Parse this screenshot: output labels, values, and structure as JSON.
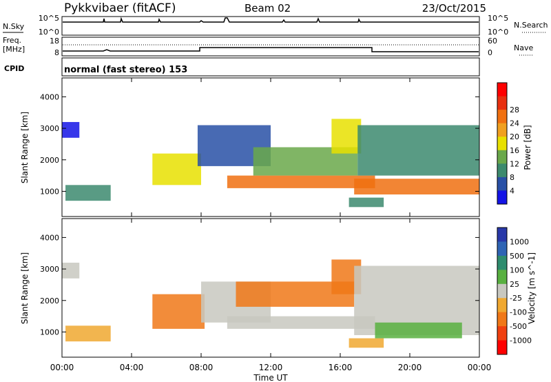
{
  "header": {
    "station": "Pykkvibaer (fitACF)",
    "beam": "Beam 02",
    "date": "23/Oct/2015"
  },
  "strip_panels": {
    "nsky_label": "N.Sky",
    "nsearch_label": "N.Search",
    "nsky_tick_top": "10^5",
    "nsky_tick_bottom": "10^0",
    "nsearch_tick_top": "10^5",
    "nsearch_tick_bottom": "10^0",
    "freq_label_1": "Freq.",
    "freq_label_2": "[MHz]",
    "freq_tick_top": "18",
    "freq_tick_bottom": "8",
    "nave_label": "Nave",
    "nave_tick_top": "60",
    "nave_tick_bottom": "0",
    "cpid_label": "CPID",
    "cpid_text": "normal (fast stereo) 153"
  },
  "colors": {
    "power_scale": [
      "#1414e6",
      "#2850a6",
      "#3c8a6e",
      "#6aa84a",
      "#e8e000",
      "#f0a020",
      "#f07010",
      "#e83010",
      "#ff0000"
    ],
    "velocity_scale": [
      "#2838a8",
      "#2e64b4",
      "#2e8c6e",
      "#58b040",
      "#c8c8c0",
      "#f0a830",
      "#f07818",
      "#f04010",
      "#ff0000"
    ]
  },
  "chart_data": [
    {
      "type": "heatmap",
      "name": "power",
      "xlabel": "",
      "ylabel": "Slant Range [km]",
      "xlim": [
        0,
        24
      ],
      "ylim": [
        200,
        4600
      ],
      "yticks": [
        "1000",
        "2000",
        "3000",
        "4000"
      ],
      "colorbar_label": "Power [dB]",
      "colorbar_ticks": [
        "4",
        "8",
        "12",
        "16",
        "20",
        "24",
        "28"
      ],
      "bands": [
        {
          "x": [
            0.2,
            2.8
          ],
          "y0": 700,
          "y1": 1200,
          "level": 12
        },
        {
          "x": [
            0.0,
            1.0
          ],
          "y0": 2700,
          "y1": 3200,
          "level": 4
        },
        {
          "x": [
            5.2,
            8.0
          ],
          "y0": 1200,
          "y1": 2200,
          "level": 20
        },
        {
          "x": [
            7.8,
            12.0
          ],
          "y0": 1800,
          "y1": 3100,
          "level": 6
        },
        {
          "x": [
            9.5,
            18.0
          ],
          "y0": 1100,
          "y1": 1500,
          "level": 28
        },
        {
          "x": [
            11.0,
            17.0
          ],
          "y0": 1500,
          "y1": 2400,
          "level": 14
        },
        {
          "x": [
            15.5,
            17.2
          ],
          "y0": 2200,
          "y1": 3300,
          "level": 20
        },
        {
          "x": [
            16.8,
            24.0
          ],
          "y0": 900,
          "y1": 1400,
          "level": 28
        },
        {
          "x": [
            17.0,
            24.0
          ],
          "y0": 1500,
          "y1": 3100,
          "level": 12
        },
        {
          "x": [
            16.5,
            18.5
          ],
          "y0": 500,
          "y1": 800,
          "level": 10
        }
      ]
    },
    {
      "type": "heatmap",
      "name": "velocity",
      "xlabel": "Time UT",
      "ylabel": "Slant Range [km]",
      "xlim": [
        0,
        24
      ],
      "ylim": [
        200,
        4600
      ],
      "yticks": [
        "1000",
        "2000",
        "3000",
        "4000"
      ],
      "xticks": [
        "00:00",
        "04:00",
        "08:00",
        "12:00",
        "16:00",
        "20:00",
        "00:00"
      ],
      "colorbar_label": "Velocity [m s^-1]",
      "colorbar_ticks": [
        "1000",
        "500",
        "100",
        "25",
        "-25",
        "-100",
        "-500",
        "-1000"
      ],
      "bands": [
        {
          "x": [
            0.2,
            2.8
          ],
          "y0": 700,
          "y1": 1200,
          "level": -100
        },
        {
          "x": [
            0.0,
            1.0
          ],
          "y0": 2700,
          "y1": 3200,
          "level": 0
        },
        {
          "x": [
            5.2,
            8.2
          ],
          "y0": 1100,
          "y1": 2200,
          "level": -300
        },
        {
          "x": [
            8.0,
            12.0
          ],
          "y0": 1300,
          "y1": 2600,
          "level": 0
        },
        {
          "x": [
            10.0,
            16.8
          ],
          "y0": 1800,
          "y1": 2600,
          "level": -300
        },
        {
          "x": [
            9.5,
            18.0
          ],
          "y0": 1100,
          "y1": 1500,
          "level": 0
        },
        {
          "x": [
            15.5,
            17.2
          ],
          "y0": 2200,
          "y1": 3300,
          "level": -300
        },
        {
          "x": [
            16.8,
            24.0
          ],
          "y0": 900,
          "y1": 3100,
          "level": 0
        },
        {
          "x": [
            16.5,
            18.5
          ],
          "y0": 500,
          "y1": 800,
          "level": -100
        },
        {
          "x": [
            18.0,
            23.0
          ],
          "y0": 800,
          "y1": 1300,
          "level": 80
        }
      ]
    }
  ]
}
